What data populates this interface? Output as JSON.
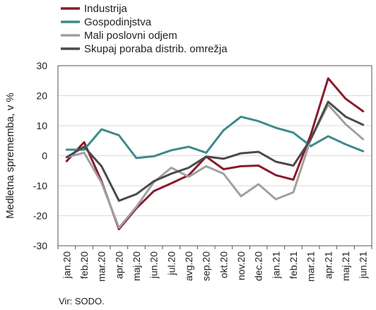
{
  "chart_data": {
    "type": "line",
    "title": "",
    "xlabel": "",
    "ylabel": "Medletna sprememba, v %",
    "ylim": [
      -30,
      30
    ],
    "yticks": [
      -30,
      -20,
      -10,
      0,
      10,
      20,
      30
    ],
    "categories": [
      "jan.20",
      "feb.20",
      "mar.20",
      "apr.20",
      "maj.20",
      "jun.20",
      "jul.20",
      "avg.20",
      "sep.20",
      "okt.20",
      "nov.20",
      "dec.20",
      "jan.21",
      "feb.21",
      "mar.21",
      "apr.21",
      "maj.21",
      "jun.21"
    ],
    "legend_position": "top-left",
    "source": "Vir: SODO.",
    "series": [
      {
        "name": "Industrija",
        "color": "#8B1A2B",
        "values": [
          -1.8,
          4.5,
          -8.5,
          -24.5,
          -17.5,
          -11.8,
          -9.2,
          -6.5,
          -0.3,
          -4.5,
          -3.5,
          -3.3,
          -6.5,
          -8.0,
          7.0,
          25.8,
          19.0,
          14.8
        ]
      },
      {
        "name": "Gospodinjstva",
        "color": "#3E8A8C",
        "values": [
          2.0,
          2.0,
          8.8,
          6.8,
          -0.8,
          -0.2,
          1.8,
          3.0,
          1.0,
          8.5,
          13.0,
          11.5,
          9.3,
          7.7,
          3.2,
          6.5,
          3.8,
          1.5
        ]
      },
      {
        "name": "Mali poslovni odjem",
        "color": "#A0A0A0",
        "values": [
          -0.5,
          1.0,
          -9.0,
          -24.0,
          -17.0,
          -8.8,
          -4.0,
          -7.0,
          -3.5,
          -6.0,
          -13.5,
          -9.5,
          -14.5,
          -12.2,
          5.5,
          17.0,
          10.5,
          5.5
        ]
      },
      {
        "name": "Skupaj poraba distrib. omrežja",
        "color": "#4A4A4A",
        "values": [
          -0.5,
          3.0,
          -3.5,
          -15.0,
          -12.8,
          -8.5,
          -6.0,
          -4.0,
          -0.3,
          -1.0,
          0.8,
          1.3,
          -2.0,
          -3.3,
          5.5,
          18.0,
          13.0,
          10.3
        ]
      }
    ]
  }
}
